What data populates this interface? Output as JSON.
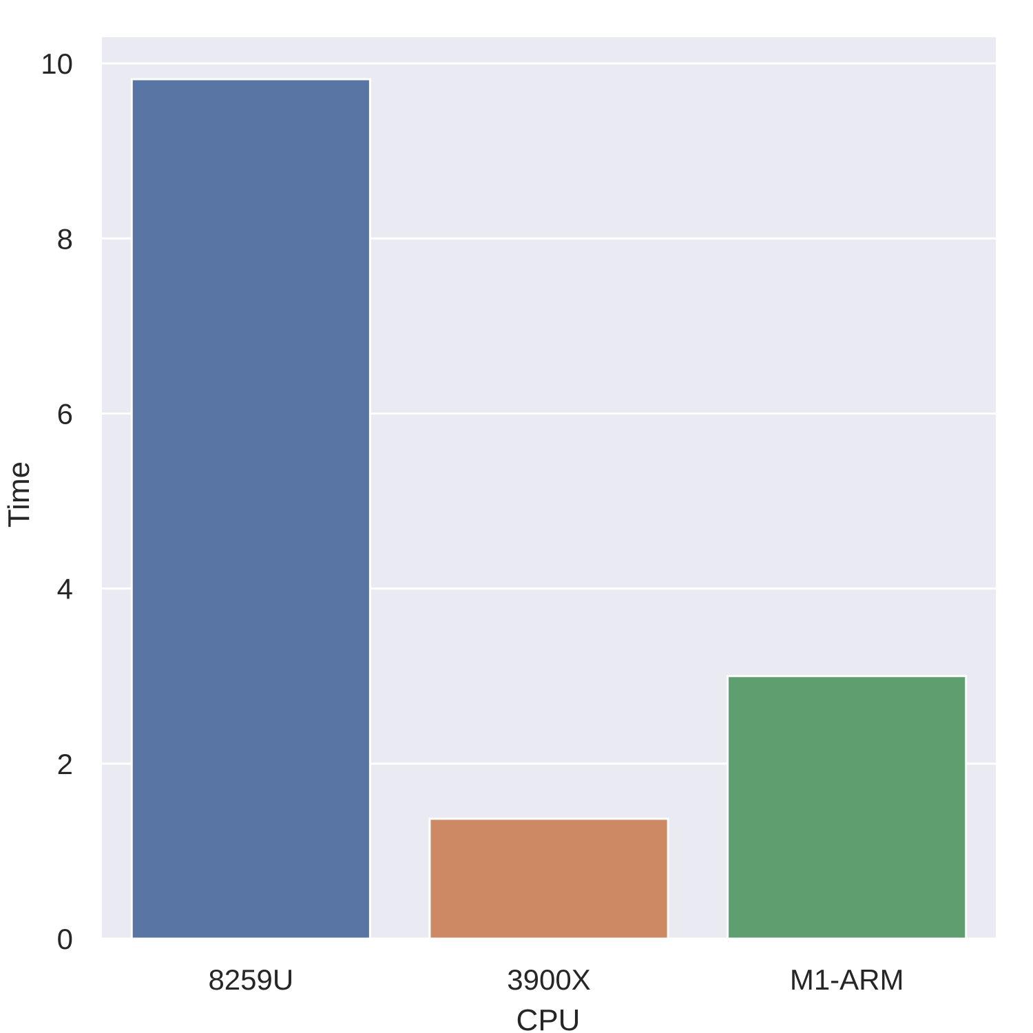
{
  "chart_data": {
    "type": "bar",
    "categories": [
      "8259U",
      "3900X",
      "M1-ARM"
    ],
    "values": [
      9.82,
      1.37,
      3.0
    ],
    "xlabel": "CPU",
    "ylabel": "Time",
    "ylim": [
      0,
      10.3
    ],
    "yticks": [
      0,
      2,
      4,
      6,
      8,
      10
    ],
    "grid": true,
    "colors": {
      "background": "#eaeaf2",
      "grid": "#ffffff",
      "bars": [
        "#5975a4",
        "#cc8963",
        "#5f9e6e"
      ],
      "text": "#262626"
    }
  }
}
